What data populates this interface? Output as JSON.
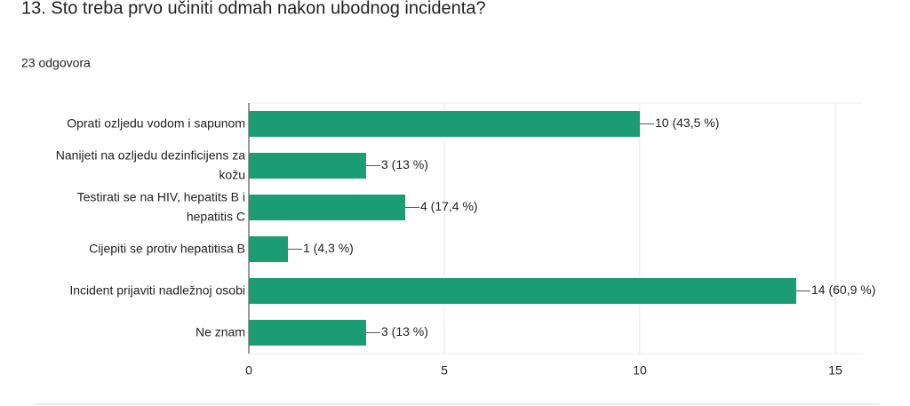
{
  "chart_data": {
    "type": "bar",
    "orientation": "horizontal",
    "title": "13. Sto treba prvo učiniti odmah nakon ubodnog incidenta?",
    "subtitle": "23 odgovora",
    "categories": [
      "Oprati ozljedu vodom i sapunom",
      "Nanijeti na ozljedu dezinficijens za kožu",
      "Testirati se na HIV, hepatits B i hepatitis C",
      "Cijepiti se protiv hepatitisa B",
      "Incident prijaviti nadležnoj osobi",
      "Ne znam"
    ],
    "values": [
      10,
      3,
      4,
      1,
      14,
      3
    ],
    "value_labels": [
      "10 (43,5 %)",
      "3 (13 %)",
      "4 (17,4 %)",
      "1 (4,3 %)",
      "14 (60,9 %)",
      "3 (13 %)"
    ],
    "color": "#1b9c73",
    "xlim": [
      0,
      15
    ],
    "xticks": [
      0,
      5,
      10,
      15
    ],
    "grid": true
  }
}
